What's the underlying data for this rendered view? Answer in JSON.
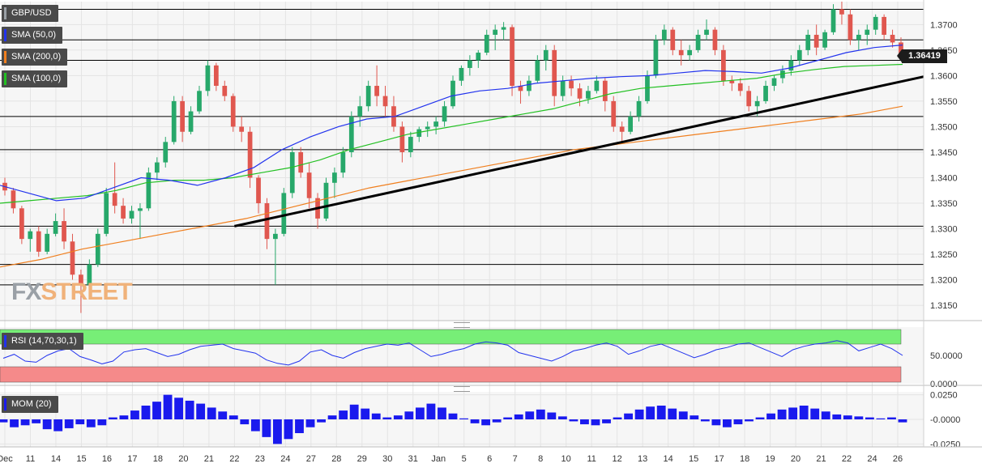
{
  "instrument": "GBP/USD",
  "indicators": {
    "sma50": {
      "label": "SMA (50,0)",
      "color": "#2233ee"
    },
    "sma200": {
      "label": "SMA (200,0)",
      "color": "#f07f1e"
    },
    "sma100": {
      "label": "SMA (100,0)",
      "color": "#22c022"
    },
    "rsi": {
      "label": "RSI (14,70,30,1)",
      "color": "#2233ee",
      "overbought_color": "#77ee77",
      "oversold_color": "#f58a8a"
    },
    "mom": {
      "label": "MOM (20)",
      "color": "#1a1aee"
    }
  },
  "current_price": "1.36419",
  "watermark": {
    "fx": "FX",
    "street": "STREET"
  },
  "colors": {
    "up": "#27a86a",
    "down": "#e0574f",
    "trendline": "#000000",
    "hline": "#000000",
    "grid": "#e4e4e4",
    "panel_bg": "#f6f6f6"
  },
  "chart_data": [
    {
      "type": "candlestick",
      "title": "GBP/USD",
      "ylim": [
        1.312,
        1.3745
      ],
      "y_ticks": [
        "1.3700",
        "1.3650",
        "1.3600",
        "1.3550",
        "1.3500",
        "1.3450",
        "1.3400",
        "1.3350",
        "1.3300",
        "1.3250",
        "1.3200",
        "1.3150"
      ],
      "x_ticks": [
        "Dec",
        "11",
        "14",
        "15",
        "16",
        "17",
        "18",
        "20",
        "21",
        "22",
        "23",
        "24",
        "27",
        "28",
        "29",
        "30",
        "31",
        "Jan",
        "5",
        "6",
        "7",
        "8",
        "10",
        "11",
        "12",
        "13",
        "14",
        "15",
        "17",
        "18",
        "19",
        "20",
        "21",
        "22",
        "24",
        "26"
      ],
      "horizontal_levels": [
        1.373,
        1.367,
        1.363,
        1.352,
        1.3455,
        1.3305,
        1.323,
        1.319
      ],
      "trendline": {
        "from": {
          "x": "22",
          "y": 1.3305
        },
        "to": {
          "x": "26",
          "y": 1.3598
        }
      },
      "candles_hourly_sampled": [
        {
          "o": 1.339,
          "h": 1.34,
          "l": 1.3365,
          "c": 1.3375
        },
        {
          "o": 1.3375,
          "h": 1.338,
          "l": 1.333,
          "c": 1.334
        },
        {
          "o": 1.334,
          "h": 1.3345,
          "l": 1.327,
          "c": 1.328
        },
        {
          "o": 1.328,
          "h": 1.33,
          "l": 1.3255,
          "c": 1.3295
        },
        {
          "o": 1.3295,
          "h": 1.3305,
          "l": 1.3245,
          "c": 1.3255
        },
        {
          "o": 1.3255,
          "h": 1.33,
          "l": 1.325,
          "c": 1.329
        },
        {
          "o": 1.329,
          "h": 1.333,
          "l": 1.3285,
          "c": 1.3315
        },
        {
          "o": 1.3315,
          "h": 1.334,
          "l": 1.326,
          "c": 1.3275
        },
        {
          "o": 1.3275,
          "h": 1.329,
          "l": 1.32,
          "c": 1.321
        },
        {
          "o": 1.321,
          "h": 1.322,
          "l": 1.3135,
          "c": 1.319
        },
        {
          "o": 1.319,
          "h": 1.324,
          "l": 1.3185,
          "c": 1.323
        },
        {
          "o": 1.323,
          "h": 1.33,
          "l": 1.3225,
          "c": 1.329
        },
        {
          "o": 1.329,
          "h": 1.338,
          "l": 1.3285,
          "c": 1.337
        },
        {
          "o": 1.337,
          "h": 1.343,
          "l": 1.333,
          "c": 1.3345
        },
        {
          "o": 1.3345,
          "h": 1.336,
          "l": 1.331,
          "c": 1.332
        },
        {
          "o": 1.332,
          "h": 1.3345,
          "l": 1.331,
          "c": 1.3335
        },
        {
          "o": 1.3335,
          "h": 1.335,
          "l": 1.328,
          "c": 1.334
        },
        {
          "o": 1.334,
          "h": 1.342,
          "l": 1.3335,
          "c": 1.341
        },
        {
          "o": 1.341,
          "h": 1.344,
          "l": 1.3395,
          "c": 1.343
        },
        {
          "o": 1.343,
          "h": 1.348,
          "l": 1.342,
          "c": 1.347
        },
        {
          "o": 1.347,
          "h": 1.356,
          "l": 1.3465,
          "c": 1.355
        },
        {
          "o": 1.355,
          "h": 1.356,
          "l": 1.347,
          "c": 1.349
        },
        {
          "o": 1.349,
          "h": 1.354,
          "l": 1.3485,
          "c": 1.353
        },
        {
          "o": 1.353,
          "h": 1.358,
          "l": 1.3525,
          "c": 1.357
        },
        {
          "o": 1.357,
          "h": 1.363,
          "l": 1.356,
          "c": 1.362
        },
        {
          "o": 1.362,
          "h": 1.3625,
          "l": 1.357,
          "c": 1.358
        },
        {
          "o": 1.358,
          "h": 1.359,
          "l": 1.355,
          "c": 1.356
        },
        {
          "o": 1.356,
          "h": 1.3565,
          "l": 1.349,
          "c": 1.35
        },
        {
          "o": 1.35,
          "h": 1.352,
          "l": 1.347,
          "c": 1.349
        },
        {
          "o": 1.349,
          "h": 1.35,
          "l": 1.338,
          "c": 1.34
        },
        {
          "o": 1.34,
          "h": 1.3405,
          "l": 1.333,
          "c": 1.335
        },
        {
          "o": 1.335,
          "h": 1.336,
          "l": 1.326,
          "c": 1.328
        },
        {
          "o": 1.328,
          "h": 1.33,
          "l": 1.319,
          "c": 1.329
        },
        {
          "o": 1.329,
          "h": 1.338,
          "l": 1.3285,
          "c": 1.337
        },
        {
          "o": 1.337,
          "h": 1.346,
          "l": 1.336,
          "c": 1.345
        },
        {
          "o": 1.345,
          "h": 1.346,
          "l": 1.34,
          "c": 1.341
        },
        {
          "o": 1.341,
          "h": 1.343,
          "l": 1.334,
          "c": 1.336
        },
        {
          "o": 1.336,
          "h": 1.337,
          "l": 1.33,
          "c": 1.332
        },
        {
          "o": 1.332,
          "h": 1.34,
          "l": 1.3315,
          "c": 1.339
        },
        {
          "o": 1.339,
          "h": 1.342,
          "l": 1.336,
          "c": 1.341
        },
        {
          "o": 1.341,
          "h": 1.346,
          "l": 1.34,
          "c": 1.345
        },
        {
          "o": 1.345,
          "h": 1.353,
          "l": 1.344,
          "c": 1.352
        },
        {
          "o": 1.352,
          "h": 1.356,
          "l": 1.35,
          "c": 1.354
        },
        {
          "o": 1.354,
          "h": 1.359,
          "l": 1.353,
          "c": 1.358
        },
        {
          "o": 1.358,
          "h": 1.362,
          "l": 1.354,
          "c": 1.356
        },
        {
          "o": 1.356,
          "h": 1.358,
          "l": 1.352,
          "c": 1.354
        },
        {
          "o": 1.354,
          "h": 1.356,
          "l": 1.349,
          "c": 1.35
        },
        {
          "o": 1.35,
          "h": 1.351,
          "l": 1.343,
          "c": 1.345
        },
        {
          "o": 1.345,
          "h": 1.349,
          "l": 1.344,
          "c": 1.348
        },
        {
          "o": 1.348,
          "h": 1.35,
          "l": 1.347,
          "c": 1.3495
        },
        {
          "o": 1.3495,
          "h": 1.351,
          "l": 1.348,
          "c": 1.35
        },
        {
          "o": 1.35,
          "h": 1.352,
          "l": 1.3485,
          "c": 1.351
        },
        {
          "o": 1.351,
          "h": 1.355,
          "l": 1.35,
          "c": 1.354
        },
        {
          "o": 1.354,
          "h": 1.36,
          "l": 1.3535,
          "c": 1.359
        },
        {
          "o": 1.359,
          "h": 1.362,
          "l": 1.358,
          "c": 1.3615
        },
        {
          "o": 1.3615,
          "h": 1.364,
          "l": 1.36,
          "c": 1.363
        },
        {
          "o": 1.363,
          "h": 1.365,
          "l": 1.3615,
          "c": 1.3645
        },
        {
          "o": 1.3645,
          "h": 1.369,
          "l": 1.364,
          "c": 1.368
        },
        {
          "o": 1.368,
          "h": 1.37,
          "l": 1.365,
          "c": 1.369
        },
        {
          "o": 1.369,
          "h": 1.3705,
          "l": 1.367,
          "c": 1.3695
        },
        {
          "o": 1.3695,
          "h": 1.37,
          "l": 1.356,
          "c": 1.358
        },
        {
          "o": 1.358,
          "h": 1.359,
          "l": 1.3545,
          "c": 1.357
        },
        {
          "o": 1.357,
          "h": 1.36,
          "l": 1.356,
          "c": 1.359
        },
        {
          "o": 1.359,
          "h": 1.364,
          "l": 1.3585,
          "c": 1.363
        },
        {
          "o": 1.363,
          "h": 1.366,
          "l": 1.361,
          "c": 1.365
        },
        {
          "o": 1.365,
          "h": 1.366,
          "l": 1.354,
          "c": 1.356
        },
        {
          "o": 1.356,
          "h": 1.36,
          "l": 1.355,
          "c": 1.359
        },
        {
          "o": 1.359,
          "h": 1.36,
          "l": 1.356,
          "c": 1.3575
        },
        {
          "o": 1.3575,
          "h": 1.3585,
          "l": 1.354,
          "c": 1.3555
        },
        {
          "o": 1.3555,
          "h": 1.358,
          "l": 1.3545,
          "c": 1.357
        },
        {
          "o": 1.357,
          "h": 1.36,
          "l": 1.3565,
          "c": 1.359
        },
        {
          "o": 1.359,
          "h": 1.3595,
          "l": 1.353,
          "c": 1.355
        },
        {
          "o": 1.355,
          "h": 1.356,
          "l": 1.349,
          "c": 1.35
        },
        {
          "o": 1.35,
          "h": 1.351,
          "l": 1.347,
          "c": 1.349
        },
        {
          "o": 1.349,
          "h": 1.353,
          "l": 1.3485,
          "c": 1.352
        },
        {
          "o": 1.352,
          "h": 1.356,
          "l": 1.351,
          "c": 1.355
        },
        {
          "o": 1.355,
          "h": 1.361,
          "l": 1.3545,
          "c": 1.36
        },
        {
          "o": 1.36,
          "h": 1.368,
          "l": 1.3595,
          "c": 1.367
        },
        {
          "o": 1.367,
          "h": 1.37,
          "l": 1.366,
          "c": 1.369
        },
        {
          "o": 1.369,
          "h": 1.3695,
          "l": 1.364,
          "c": 1.365
        },
        {
          "o": 1.365,
          "h": 1.367,
          "l": 1.362,
          "c": 1.364
        },
        {
          "o": 1.364,
          "h": 1.366,
          "l": 1.363,
          "c": 1.365
        },
        {
          "o": 1.365,
          "h": 1.369,
          "l": 1.3645,
          "c": 1.368
        },
        {
          "o": 1.368,
          "h": 1.371,
          "l": 1.367,
          "c": 1.369
        },
        {
          "o": 1.369,
          "h": 1.3695,
          "l": 1.364,
          "c": 1.365
        },
        {
          "o": 1.365,
          "h": 1.366,
          "l": 1.358,
          "c": 1.359
        },
        {
          "o": 1.359,
          "h": 1.36,
          "l": 1.357,
          "c": 1.3585
        },
        {
          "o": 1.3585,
          "h": 1.3595,
          "l": 1.356,
          "c": 1.357
        },
        {
          "o": 1.357,
          "h": 1.358,
          "l": 1.353,
          "c": 1.354
        },
        {
          "o": 1.354,
          "h": 1.356,
          "l": 1.352,
          "c": 1.355
        },
        {
          "o": 1.355,
          "h": 1.359,
          "l": 1.3545,
          "c": 1.358
        },
        {
          "o": 1.358,
          "h": 1.36,
          "l": 1.357,
          "c": 1.3595
        },
        {
          "o": 1.3595,
          "h": 1.362,
          "l": 1.3585,
          "c": 1.361
        },
        {
          "o": 1.361,
          "h": 1.364,
          "l": 1.36,
          "c": 1.363
        },
        {
          "o": 1.363,
          "h": 1.366,
          "l": 1.362,
          "c": 1.365
        },
        {
          "o": 1.365,
          "h": 1.369,
          "l": 1.364,
          "c": 1.368
        },
        {
          "o": 1.368,
          "h": 1.37,
          "l": 1.364,
          "c": 1.3655
        },
        {
          "o": 1.3655,
          "h": 1.369,
          "l": 1.365,
          "c": 1.3685
        },
        {
          "o": 1.3685,
          "h": 1.374,
          "l": 1.368,
          "c": 1.373
        },
        {
          "o": 1.373,
          "h": 1.3745,
          "l": 1.37,
          "c": 1.372
        },
        {
          "o": 1.372,
          "h": 1.373,
          "l": 1.366,
          "c": 1.367
        },
        {
          "o": 1.367,
          "h": 1.369,
          "l": 1.365,
          "c": 1.368
        },
        {
          "o": 1.368,
          "h": 1.37,
          "l": 1.366,
          "c": 1.369
        },
        {
          "o": 1.369,
          "h": 1.372,
          "l": 1.368,
          "c": 1.3715
        },
        {
          "o": 1.3715,
          "h": 1.372,
          "l": 1.367,
          "c": 1.368
        },
        {
          "o": 1.368,
          "h": 1.369,
          "l": 1.3655,
          "c": 1.3665
        },
        {
          "o": 1.3665,
          "h": 1.3675,
          "l": 1.363,
          "c": 1.3642
        }
      ],
      "sma50": [
        1.3385,
        1.337,
        1.3355,
        1.336,
        1.338,
        1.34,
        1.3395,
        1.3385,
        1.34,
        1.342,
        1.3455,
        1.348,
        1.35,
        1.3515,
        1.352,
        1.354,
        1.356,
        1.357,
        1.3575,
        1.3585,
        1.359,
        1.3595,
        1.3598,
        1.36,
        1.3605,
        1.361,
        1.3608,
        1.3605,
        1.3615,
        1.363,
        1.3645,
        1.3655,
        1.366
      ],
      "sma100": [
        1.335,
        1.3355,
        1.336,
        1.3365,
        1.3375,
        1.339,
        1.3395,
        1.3395,
        1.34,
        1.341,
        1.342,
        1.3435,
        1.3455,
        1.347,
        1.3485,
        1.3495,
        1.3505,
        1.3515,
        1.3525,
        1.3535,
        1.355,
        1.3565,
        1.3575,
        1.358,
        1.3585,
        1.359,
        1.3595,
        1.3605,
        1.3612,
        1.3618,
        1.362,
        1.3622
      ],
      "sma200": [
        1.3225,
        1.324,
        1.326,
        1.3275,
        1.329,
        1.3305,
        1.332,
        1.334,
        1.336,
        1.338,
        1.3395,
        1.341,
        1.3425,
        1.344,
        1.3455,
        1.3465,
        1.3475,
        1.3485,
        1.3495,
        1.3505,
        1.3515,
        1.3525,
        1.354
      ]
    },
    {
      "type": "line",
      "title": "RSI (14,70,30,1)",
      "ylim": [
        0,
        100
      ],
      "y_ticks": [
        "50.0000",
        "0.0000"
      ],
      "values": [
        45,
        52,
        40,
        38,
        50,
        58,
        62,
        48,
        42,
        35,
        40,
        56,
        60,
        62,
        55,
        48,
        52,
        60,
        66,
        68,
        70,
        62,
        58,
        54,
        42,
        36,
        33,
        40,
        56,
        60,
        50,
        45,
        55,
        62,
        66,
        70,
        68,
        72,
        60,
        48,
        52,
        58,
        62,
        70,
        74,
        72,
        68,
        55,
        50,
        45,
        40,
        48,
        58,
        62,
        68,
        72,
        66,
        52,
        58,
        66,
        70,
        62,
        54,
        46,
        52,
        60,
        64,
        70,
        72,
        64,
        56,
        48,
        60,
        66,
        70,
        72,
        76,
        72,
        58,
        64,
        70,
        62,
        50
      ]
    },
    {
      "type": "bar",
      "title": "MOM (20)",
      "ylim": [
        -0.028,
        0.028
      ],
      "y_ticks": [
        "0.0250",
        "-0.0000",
        "-0.0250"
      ],
      "values": [
        -0.003,
        -0.008,
        -0.006,
        -0.004,
        -0.01,
        -0.012,
        -0.009,
        -0.005,
        -0.008,
        -0.006,
        0.002,
        0.004,
        0.009,
        0.014,
        0.018,
        0.025,
        0.022,
        0.019,
        0.016,
        0.012,
        0.008,
        0.004,
        -0.005,
        -0.012,
        -0.018,
        -0.025,
        -0.02,
        -0.014,
        -0.008,
        -0.003,
        0.004,
        0.009,
        0.015,
        0.011,
        0.006,
        0.002,
        0.004,
        0.008,
        0.012,
        0.016,
        0.012,
        0.006,
        0.001,
        -0.004,
        -0.006,
        -0.003,
        0.002,
        0.005,
        0.008,
        0.01,
        0.007,
        0.003,
        -0.002,
        -0.005,
        -0.006,
        -0.004,
        0.002,
        0.006,
        0.01,
        0.013,
        0.014,
        0.011,
        0.008,
        0.004,
        -0.002,
        -0.006,
        -0.008,
        -0.005,
        -0.002,
        0.002,
        0.006,
        0.01,
        0.012,
        0.014,
        0.011,
        0.008,
        0.005,
        0.004,
        0.003,
        0.002,
        0.001,
        0.002,
        -0.003
      ]
    }
  ]
}
